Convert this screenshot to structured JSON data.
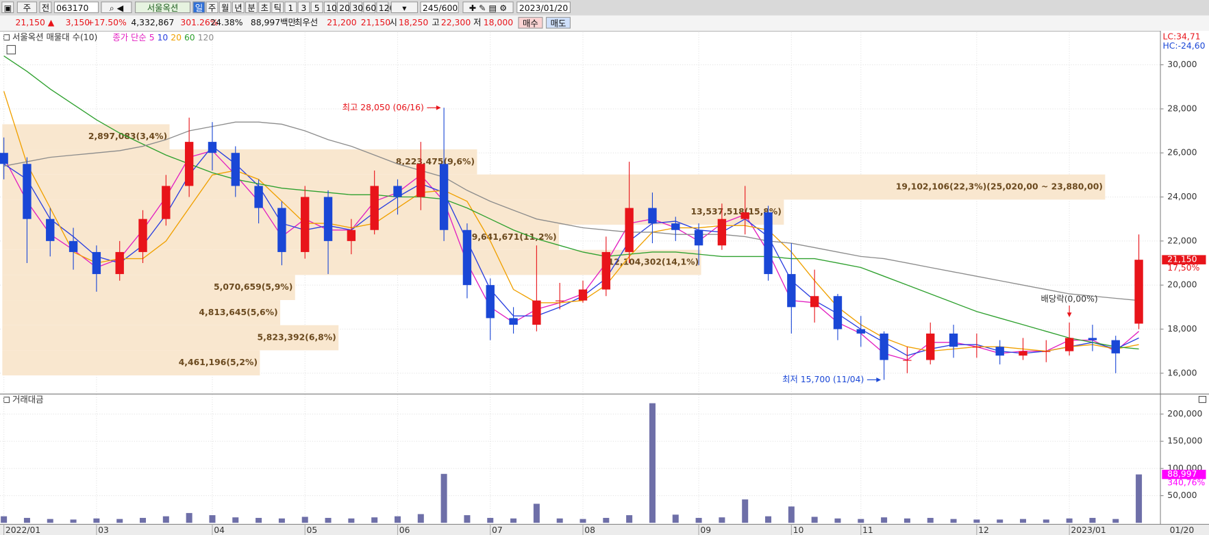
{
  "toolbar": {
    "market": "주",
    "type": "전",
    "code": "063170",
    "name": "서울옥션",
    "periods": [
      "일",
      "주",
      "월",
      "년",
      "분",
      "초",
      "틱"
    ],
    "intervals": [
      "1",
      "3",
      "5",
      "10",
      "20",
      "30",
      "60",
      "120"
    ],
    "count": "245/600",
    "date": "2023/01/20"
  },
  "info": {
    "price": "21,150",
    "change": "3,150",
    "change_pct": "+17.50%",
    "volume": "4,332,867",
    "volume_ratio": "301.26%",
    "turnover": "24.38%",
    "amount": "88,997백만",
    "best_label": "최우선",
    "best_ask": "21,200",
    "best_bid": "21,150",
    "open_label": "시",
    "open": "18,250",
    "high_label": "고",
    "high": "22,300",
    "low_label": "저",
    "low": "18,000",
    "buy": "매수",
    "sell": "매도"
  },
  "chart_data": [
    {
      "type": "candlestick",
      "title": "서울옥션 매물대 수(10)",
      "open": [
        26000,
        25500,
        23000,
        22000,
        21500,
        20500,
        21500,
        23000,
        24500,
        26500,
        26000,
        24500,
        23500,
        21500,
        24000,
        22000,
        22500,
        24500,
        24000,
        25500,
        22500,
        20000,
        18500,
        18200,
        19300,
        19300,
        19800,
        21500,
        23500,
        22800,
        22500,
        21800,
        23000,
        23300,
        20500,
        19000,
        19500,
        18000,
        17800,
        16600,
        16600,
        17800,
        17200,
        17200,
        16800,
        17000,
        17000,
        17600,
        17500,
        18250
      ],
      "high": [
        26700,
        25800,
        23500,
        22600,
        21800,
        22000,
        23400,
        25000,
        27600,
        27400,
        26300,
        24800,
        23800,
        24500,
        24300,
        23000,
        25200,
        24800,
        26500,
        28050,
        22800,
        20300,
        19000,
        21800,
        20100,
        20200,
        22200,
        25600,
        24200,
        23100,
        22800,
        23700,
        24500,
        23600,
        21900,
        20700,
        19600,
        18600,
        17900,
        17200,
        18300,
        18200,
        17800,
        17500,
        17600,
        17500,
        18300,
        18200,
        17700,
        22300
      ],
      "low": [
        24800,
        21000,
        21300,
        20700,
        19700,
        20200,
        21000,
        22700,
        24000,
        25200,
        24000,
        22800,
        20900,
        21200,
        20500,
        21400,
        22300,
        23200,
        23400,
        22000,
        19400,
        17500,
        17800,
        17900,
        18900,
        19200,
        19500,
        21000,
        21900,
        22000,
        20900,
        21600,
        22300,
        20200,
        17800,
        18300,
        17500,
        17200,
        15700,
        16000,
        16400,
        16700,
        16700,
        16400,
        16600,
        16500,
        16800,
        17000,
        16000,
        18000
      ],
      "close": [
        25500,
        23000,
        22000,
        21500,
        20500,
        21500,
        23000,
        24500,
        26500,
        26000,
        24500,
        23500,
        21500,
        24000,
        22000,
        22500,
        24500,
        24000,
        25500,
        22500,
        20000,
        18500,
        18200,
        19300,
        19300,
        19800,
        21500,
        23500,
        22800,
        22500,
        21800,
        23000,
        23300,
        20500,
        19000,
        19500,
        18000,
        17800,
        16600,
        16600,
        17800,
        17200,
        17200,
        16800,
        17000,
        17000,
        17600,
        17500,
        16900,
        21150
      ],
      "up_color": "#e8141a",
      "down_color": "#1a47d6",
      "ma_legend_title": "종가 단순",
      "series": [
        {
          "name": "5",
          "color": "#e21fc0",
          "values": [
            25800,
            23800,
            22300,
            21600,
            20800,
            21200,
            22500,
            24000,
            25800,
            26100,
            25000,
            23800,
            22200,
            23000,
            22500,
            22500,
            23800,
            24200,
            25000,
            23800,
            21000,
            19000,
            18300,
            18900,
            19200,
            19600,
            21000,
            22800,
            23000,
            22600,
            22000,
            22800,
            23200,
            21500,
            19300,
            19200,
            18300,
            17800,
            16900,
            16600,
            17400,
            17400,
            17200,
            16900,
            17000,
            17000,
            17500,
            17500,
            17000,
            17900
          ]
        },
        {
          "name": "10",
          "color": "#2a3fe0",
          "values": [
            25500,
            24800,
            23000,
            22200,
            21300,
            21000,
            21800,
            23200,
            25000,
            26300,
            25500,
            24500,
            22800,
            22500,
            22700,
            22500,
            23300,
            24000,
            24600,
            24200,
            22000,
            19800,
            18600,
            18600,
            19000,
            19500,
            20300,
            22000,
            22800,
            22900,
            22500,
            22400,
            23000,
            22200,
            20200,
            19300,
            18700,
            18000,
            17400,
            16800,
            17100,
            17300,
            17300,
            17000,
            16900,
            17000,
            17200,
            17400,
            17100,
            17600
          ]
        },
        {
          "name": "20",
          "color": "#f0a000",
          "values": [
            28800,
            25500,
            23500,
            21500,
            21000,
            21200,
            21200,
            22000,
            23500,
            25000,
            25200,
            24800,
            23800,
            22800,
            22800,
            22600,
            22800,
            23500,
            24200,
            24300,
            23800,
            22000,
            19800,
            19200,
            19200,
            19300,
            20000,
            21300,
            22400,
            22600,
            22600,
            22700,
            22700,
            22500,
            21500,
            20200,
            19000,
            18200,
            17600,
            17200,
            17000,
            17100,
            17200,
            17200,
            17100,
            17000,
            17200,
            17300,
            17100,
            17300
          ]
        },
        {
          "name": "60",
          "color": "#2ea02e",
          "values": [
            30400,
            29700,
            28900,
            28200,
            27500,
            26900,
            26400,
            25900,
            25500,
            25100,
            24800,
            24600,
            24400,
            24300,
            24200,
            24100,
            24100,
            24000,
            24000,
            23900,
            23500,
            23000,
            22500,
            22100,
            21800,
            21500,
            21300,
            21400,
            21500,
            21500,
            21400,
            21300,
            21300,
            21300,
            21200,
            21200,
            21000,
            20800,
            20400,
            20000,
            19600,
            19200,
            18800,
            18500,
            18200,
            17900,
            17600,
            17400,
            17200,
            17100
          ]
        },
        {
          "name": "120",
          "color": "#8c8c8c",
          "values": [
            25400,
            25600,
            25800,
            25900,
            26000,
            26100,
            26300,
            26600,
            27000,
            27200,
            27400,
            27400,
            27300,
            27000,
            26600,
            26300,
            25900,
            25500,
            25200,
            24900,
            24300,
            23800,
            23400,
            23000,
            22800,
            22600,
            22500,
            22400,
            22400,
            22300,
            22300,
            22300,
            22200,
            22000,
            21900,
            21700,
            21500,
            21300,
            21200,
            21000,
            20800,
            20600,
            20400,
            20200,
            20000,
            19800,
            19600,
            19500,
            19400,
            19300
          ]
        }
      ],
      "volume_profile": {
        "color": "#f9e7cf",
        "label_color": "#6b4a1f",
        "xlim": [
          0,
          20100000
        ],
        "bands": [
          {
            "value": 2897083,
            "label": "2,897,083(3,4%)",
            "low": 26160,
            "high": 27300
          },
          {
            "value": 8223475,
            "label": "8,223,475(9,6%)",
            "low": 25020,
            "high": 26160
          },
          {
            "value": 19102106,
            "label": "19,102,106(22,3%)(25,020,00 ~ 23,880,00)",
            "low": 23880,
            "high": 25020
          },
          {
            "value": 13537518,
            "label": "13,537,518(15,8%)",
            "low": 22740,
            "high": 23880
          },
          {
            "value": 9641671,
            "label": "9,641,671(11,2%)",
            "low": 21600,
            "high": 22740
          },
          {
            "value": 12104302,
            "label": "12,104,302(14,1%)",
            "low": 20460,
            "high": 21600
          },
          {
            "value": 5070659,
            "label": "5,070,659(5,9%)",
            "low": 19320,
            "high": 20460
          },
          {
            "value": 4813645,
            "label": "4,813,645(5,6%)",
            "low": 18180,
            "high": 19320
          },
          {
            "value": 5823392,
            "label": "5,823,392(6,8%)",
            "low": 17040,
            "high": 18180
          },
          {
            "value": 4461196,
            "label": "4,461,196(5,2%)",
            "low": 15900,
            "high": 17040
          }
        ]
      },
      "annotations": [
        {
          "text": "최고 28,050 (06/16)",
          "value": 28050,
          "color": "#e8141a"
        },
        {
          "text": "최저 15,700 (11/04)",
          "value": 15700,
          "color": "#1a47d6"
        },
        {
          "text": "배당락(0,00%)",
          "color": "#333333"
        }
      ],
      "ylim": [
        15090,
        31470
      ],
      "yticks": [
        {
          "value": 16000,
          "label": "16,000"
        },
        {
          "value": 18000,
          "label": "18,000"
        },
        {
          "value": 20000,
          "label": "20,000"
        },
        {
          "value": 22000,
          "label": "22,000"
        },
        {
          "value": 24000,
          "label": "24,000"
        },
        {
          "value": 26000,
          "label": "26,000"
        },
        {
          "value": 28000,
          "label": "28,000"
        },
        {
          "value": 30000,
          "label": "30,000"
        }
      ],
      "grid": true,
      "price_tag": {
        "value": 21150,
        "label": "21,150",
        "change": "17,50%",
        "color": "#e8141a"
      },
      "lc_label": "LC:34,71",
      "hc_label": "HC:-24,60"
    },
    {
      "type": "bar",
      "title": "거래대금",
      "categories": [
        "2022/01",
        null,
        null,
        null,
        "03",
        null,
        null,
        null,
        null,
        "04",
        null,
        null,
        null,
        "05",
        null,
        null,
        null,
        "06",
        null,
        null,
        null,
        "07",
        null,
        null,
        null,
        "08",
        null,
        null,
        null,
        null,
        "09",
        null,
        null,
        null,
        "10",
        null,
        null,
        "11",
        null,
        null,
        null,
        null,
        "12",
        null,
        null,
        null,
        "2023/01",
        null,
        null,
        null
      ],
      "x_end_label": "01/20",
      "values": [
        12000,
        9000,
        7000,
        6000,
        8000,
        7000,
        9000,
        12000,
        18000,
        14000,
        10000,
        9000,
        8000,
        11000,
        9000,
        8000,
        10000,
        12000,
        16000,
        90000,
        14000,
        9000,
        8000,
        35000,
        8000,
        7000,
        9000,
        14000,
        220000,
        15000,
        9000,
        10000,
        43000,
        12000,
        30000,
        11000,
        8000,
        7000,
        10000,
        8000,
        9000,
        7000,
        6000,
        6000,
        7000,
        6000,
        8000,
        9000,
        7000,
        88997
      ],
      "color": "#6e6fa8",
      "ylim": [
        0,
        235500
      ],
      "yticks": [
        {
          "value": 50000,
          "label": "50,000"
        },
        {
          "value": 100000,
          "label": "100,000"
        },
        {
          "value": 150000,
          "label": "150,000"
        },
        {
          "value": 200000,
          "label": "200,000"
        }
      ],
      "grid": true,
      "value_tag": {
        "value": 88997,
        "label": "88,997",
        "change": "340,76%",
        "color": "#ff00ff"
      }
    }
  ]
}
